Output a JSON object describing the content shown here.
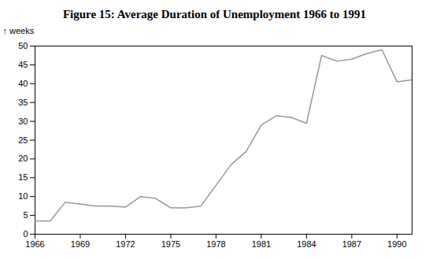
{
  "chart_data": {
    "type": "line",
    "title": "Figure 15: Average Duration of Unemployment 1966 to 1991",
    "ylabel": "weeks",
    "x": [
      1966,
      1967,
      1968,
      1969,
      1970,
      1971,
      1972,
      1973,
      1974,
      1975,
      1976,
      1977,
      1978,
      1979,
      1980,
      1981,
      1982,
      1983,
      1984,
      1985,
      1986,
      1987,
      1988,
      1989,
      1990,
      1991
    ],
    "values": [
      3.5,
      3.5,
      8.5,
      8.0,
      7.5,
      7.5,
      7.2,
      10.0,
      9.5,
      7.0,
      7.0,
      7.5,
      13.0,
      18.5,
      22.0,
      29.0,
      31.5,
      31.0,
      29.5,
      47.5,
      46.0,
      46.5,
      48.0,
      49.0,
      40.5,
      41.0
    ],
    "color": "#999999",
    "xlim": [
      1966,
      1991
    ],
    "ylim": [
      0,
      50
    ],
    "xticks": [
      1966,
      1969,
      1972,
      1975,
      1978,
      1981,
      1984,
      1987,
      1990
    ],
    "yticks": [
      0,
      5,
      10,
      15,
      20,
      25,
      30,
      35,
      40,
      45,
      50
    ],
    "grid": false
  }
}
